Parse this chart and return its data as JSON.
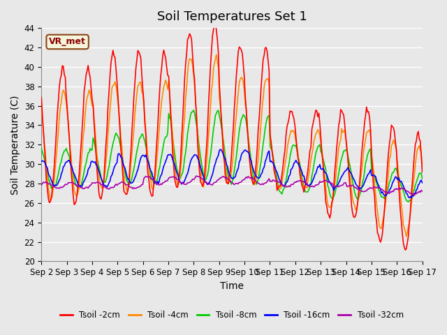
{
  "title": "Soil Temperatures Set 1",
  "xlabel": "Time",
  "ylabel": "Soil Temperature (C)",
  "ylim": [
    20,
    44
  ],
  "yticks": [
    20,
    22,
    24,
    26,
    28,
    30,
    32,
    34,
    36,
    38,
    40,
    42,
    44
  ],
  "x_labels": [
    "Sep 2",
    "Sep 3",
    "Sep 4",
    "Sep 5",
    "Sep 6",
    "Sep 7",
    "Sep 8",
    "Sep 9",
    "Sep 10",
    "Sep 11",
    "Sep 12",
    "Sep 13",
    "Sep 14",
    "Sep 15",
    "Sep 16",
    "Sep 17"
  ],
  "series_colors": [
    "#ff0000",
    "#ff8800",
    "#00cc00",
    "#0000ff",
    "#aa00aa"
  ],
  "series_labels": [
    "Tsoil -2cm",
    "Tsoil -4cm",
    "Tsoil -8cm",
    "Tsoil -16cm",
    "Tsoil -32cm"
  ],
  "annotation_text": "VR_met",
  "plot_bg_color": "#e8e8e8",
  "grid_color": "#ffffff",
  "title_fontsize": 13,
  "axis_label_fontsize": 10,
  "tick_fontsize": 8.5
}
